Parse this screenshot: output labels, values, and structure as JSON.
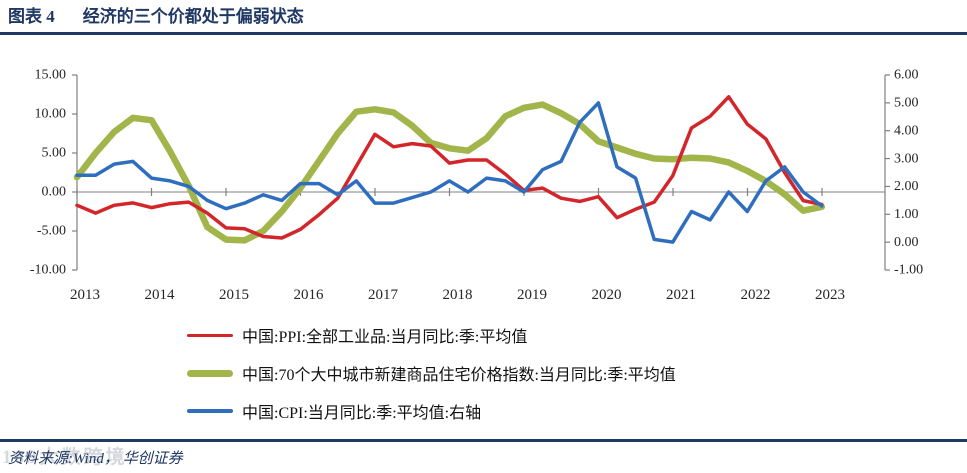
{
  "header": {
    "figure_label": "图表 4",
    "title": "经济的三个价都处于偏弱状态"
  },
  "footer": {
    "source": "资料来源:Wind， 华创证券",
    "watermark": "189大数跨境"
  },
  "colors": {
    "navy": "#1F3864",
    "red": "#D3262B",
    "green": "#A2B54A",
    "blue": "#2F6EBE",
    "axis": "#808080",
    "tick_text": "#262626"
  },
  "chart_data": {
    "type": "line",
    "title": "经济的三个价都处于偏弱状态",
    "x_tick_labels": [
      "2013",
      "2014",
      "2015",
      "2016",
      "2017",
      "2018",
      "2019",
      "2020",
      "2021",
      "2022",
      "2023"
    ],
    "quarters": [
      "2013Q1",
      "2013Q2",
      "2013Q3",
      "2013Q4",
      "2014Q1",
      "2014Q2",
      "2014Q3",
      "2014Q4",
      "2015Q1",
      "2015Q2",
      "2015Q3",
      "2015Q4",
      "2016Q1",
      "2016Q2",
      "2016Q3",
      "2016Q4",
      "2017Q1",
      "2017Q2",
      "2017Q3",
      "2017Q4",
      "2018Q1",
      "2018Q2",
      "2018Q3",
      "2018Q4",
      "2019Q1",
      "2019Q2",
      "2019Q3",
      "2019Q4",
      "2020Q1",
      "2020Q2",
      "2020Q3",
      "2020Q4",
      "2021Q1",
      "2021Q2",
      "2021Q3",
      "2021Q4",
      "2022Q1",
      "2022Q2",
      "2022Q3",
      "2022Q4",
      "2023Q1"
    ],
    "left_axis": {
      "range": [
        -10,
        15
      ],
      "tick_values": [
        15,
        10,
        5,
        0,
        -5,
        -10
      ],
      "tick_labels": [
        "15.00",
        "10.00",
        "5.00",
        "0.00",
        "-5.00",
        "-10.00"
      ]
    },
    "right_axis": {
      "range": [
        -1,
        6
      ],
      "tick_values": [
        6,
        5,
        4,
        3,
        2,
        1,
        0,
        -1
      ],
      "tick_labels": [
        "6.00",
        "5.00",
        "4.00",
        "3.00",
        "2.00",
        "1.00",
        "0.00",
        "-1.00"
      ]
    },
    "grid": false,
    "legend_position": "bottom",
    "series": [
      {
        "name": "中国:PPI:全部工业品:当月同比:季:平均值",
        "color": "#D3262B",
        "axis": "left",
        "stroke_width": 3.5,
        "values": [
          -1.7,
          -2.7,
          -1.7,
          -1.4,
          -2.0,
          -1.5,
          -1.3,
          -2.7,
          -4.6,
          -4.7,
          -5.7,
          -5.9,
          -4.8,
          -2.9,
          -0.8,
          3.3,
          7.4,
          5.8,
          6.2,
          5.9,
          3.7,
          4.1,
          4.1,
          2.3,
          0.2,
          0.5,
          -0.8,
          -1.2,
          -0.6,
          -3.3,
          -2.2,
          -1.3,
          2.1,
          8.2,
          9.7,
          12.2,
          8.7,
          6.8,
          2.5,
          -1.1,
          -1.6
        ]
      },
      {
        "name": "中国:70个大中城市新建商品住宅价格指数:当月同比:季:平均值",
        "color": "#A2B54A",
        "axis": "left",
        "stroke_width": 6.5,
        "values": [
          1.9,
          5.0,
          7.7,
          9.5,
          9.2,
          5.2,
          0.8,
          -4.5,
          -6.1,
          -6.2,
          -5.0,
          -2.5,
          0.5,
          4.0,
          7.5,
          10.3,
          10.6,
          10.2,
          8.5,
          6.3,
          5.6,
          5.3,
          6.9,
          9.7,
          10.8,
          11.2,
          10.1,
          8.7,
          6.5,
          5.7,
          4.9,
          4.3,
          4.2,
          4.4,
          4.3,
          3.8,
          2.7,
          1.4,
          -0.3,
          -2.4,
          -1.9
        ]
      },
      {
        "name": "中国:CPI:当月同比:季:平均值:右轴",
        "color": "#2F6EBE",
        "axis": "right",
        "stroke_width": 3.5,
        "values": [
          2.4,
          2.4,
          2.8,
          2.9,
          2.3,
          2.2,
          2.0,
          1.5,
          1.2,
          1.4,
          1.7,
          1.5,
          2.1,
          2.1,
          1.7,
          2.2,
          1.4,
          1.4,
          1.6,
          1.8,
          2.2,
          1.8,
          2.3,
          2.2,
          1.8,
          2.6,
          2.9,
          4.3,
          5.0,
          2.7,
          2.3,
          0.1,
          0.0,
          1.1,
          0.8,
          1.8,
          1.1,
          2.2,
          2.7,
          1.8,
          1.3
        ]
      }
    ]
  }
}
